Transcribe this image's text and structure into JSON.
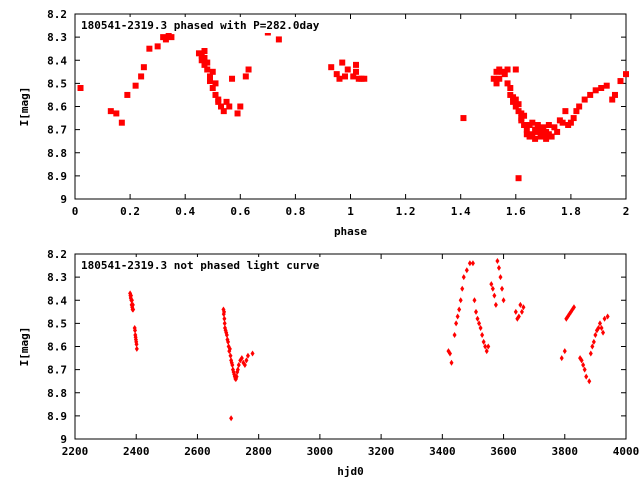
{
  "chart_data": [
    {
      "type": "scatter",
      "title": "180541-2319.3 phased with P=282.0day",
      "xlabel": "phase",
      "ylabel": "I[mag]",
      "xlim": [
        0,
        2
      ],
      "ylim": [
        9,
        8.2
      ],
      "y_inverted": true,
      "xticks": [
        "0",
        "0.2",
        "0.4",
        "0.6",
        "0.8",
        "1",
        "1.2",
        "1.4",
        "1.6",
        "1.8",
        "2"
      ],
      "yticks": [
        "8.2",
        "8.3",
        "8.4",
        "8.5",
        "8.6",
        "8.7",
        "8.8",
        "8.9",
        "9"
      ],
      "marker": "filled-square",
      "color": "#ff0000",
      "series": [
        {
          "x": [
            0.02,
            0.13,
            0.15,
            0.17,
            0.19,
            0.22,
            0.24,
            0.25,
            0.27,
            0.3,
            0.32,
            0.33,
            0.34,
            0.35,
            0.41,
            0.42,
            0.45,
            0.46,
            0.46,
            0.47,
            0.47,
            0.47,
            0.48,
            0.48,
            0.49,
            0.49,
            0.5,
            0.5,
            0.51,
            0.51,
            0.52,
            0.52,
            0.53,
            0.54,
            0.55,
            0.56,
            0.57,
            0.59,
            0.6,
            0.62,
            0.63,
            0.69,
            0.69,
            0.7,
            0.74,
            0.93,
            0.95,
            0.96,
            0.97,
            0.98,
            0.99,
            1.01,
            1.02,
            1.02,
            1.03,
            1.04,
            1.05,
            1.41,
            1.52,
            1.53,
            1.53,
            1.54,
            1.54,
            1.55,
            1.56,
            1.57,
            1.57,
            1.58,
            1.58,
            1.59,
            1.59,
            1.6,
            1.6,
            1.6,
            1.61,
            1.61,
            1.61,
            1.62,
            1.62,
            1.62,
            1.63,
            1.63,
            1.64,
            1.64,
            1.65,
            1.65,
            1.66,
            1.66,
            1.67,
            1.67,
            1.68,
            1.68,
            1.69,
            1.69,
            1.7,
            1.7,
            1.71,
            1.71,
            1.72,
            1.72,
            1.73,
            1.74,
            1.75,
            1.76,
            1.77,
            1.78,
            1.79,
            1.8,
            1.81,
            1.82,
            1.83,
            1.85,
            1.87,
            1.89,
            1.91,
            1.93,
            1.95,
            1.96,
            1.98,
            2.0
          ],
          "y": [
            8.52,
            8.62,
            8.63,
            8.67,
            8.55,
            8.51,
            8.47,
            8.43,
            8.35,
            8.34,
            8.3,
            8.31,
            8.29,
            8.3,
            8.24,
            8.25,
            8.37,
            8.38,
            8.4,
            8.36,
            8.42,
            8.39,
            8.44,
            8.41,
            8.47,
            8.49,
            8.45,
            8.52,
            8.5,
            8.55,
            8.57,
            8.58,
            8.6,
            8.62,
            8.58,
            8.6,
            8.48,
            8.63,
            8.6,
            8.47,
            8.44,
            8.24,
            8.25,
            8.28,
            8.31,
            8.43,
            8.46,
            8.48,
            8.41,
            8.47,
            8.44,
            8.47,
            8.42,
            8.45,
            8.48,
            8.48,
            8.48,
            8.65,
            8.48,
            8.45,
            8.5,
            8.44,
            8.48,
            8.45,
            8.46,
            8.44,
            8.5,
            8.52,
            8.55,
            8.56,
            8.58,
            8.6,
            8.57,
            8.44,
            8.62,
            8.59,
            8.91,
            8.63,
            8.65,
            8.66,
            8.64,
            8.68,
            8.7,
            8.72,
            8.73,
            8.68,
            8.72,
            8.67,
            8.7,
            8.74,
            8.71,
            8.68,
            8.73,
            8.7,
            8.72,
            8.69,
            8.71,
            8.74,
            8.68,
            8.72,
            8.73,
            8.69,
            8.71,
            8.66,
            8.67,
            8.62,
            8.68,
            8.67,
            8.65,
            8.62,
            8.6,
            8.57,
            8.55,
            8.53,
            8.52,
            8.51,
            8.57,
            8.55,
            8.49,
            8.46
          ]
        }
      ]
    },
    {
      "type": "scatter",
      "title": "180541-2319.3 not phased light curve",
      "xlabel": "hjd0",
      "ylabel": "I[mag]",
      "xlim": [
        2200,
        4000
      ],
      "ylim": [
        9,
        8.2
      ],
      "y_inverted": true,
      "xticks": [
        "2200",
        "2400",
        "2600",
        "2800",
        "3000",
        "3200",
        "3400",
        "3600",
        "3800",
        "4000"
      ],
      "yticks": [
        "8.2",
        "8.3",
        "8.4",
        "8.5",
        "8.6",
        "8.7",
        "8.8",
        "8.9",
        "9"
      ],
      "marker": "small-diamond",
      "color": "#ff0000",
      "series": [
        {
          "x": [
            2380,
            2381,
            2382,
            2383,
            2384,
            2385,
            2386,
            2387,
            2388,
            2389,
            2390,
            2395,
            2396,
            2397,
            2398,
            2399,
            2400,
            2401,
            2402,
            2685,
            2686,
            2687,
            2688,
            2689,
            2690,
            2692,
            2694,
            2696,
            2698,
            2700,
            2702,
            2704,
            2706,
            2708,
            2710,
            2712,
            2714,
            2716,
            2718,
            2720,
            2722,
            2724,
            2726,
            2728,
            2730,
            2732,
            2735,
            2740,
            2745,
            2750,
            2755,
            2760,
            2765,
            2780,
            2710,
            3420,
            3425,
            3430,
            3440,
            3445,
            3450,
            3455,
            3460,
            3465,
            3470,
            3480,
            3490,
            3500,
            3505,
            3510,
            3515,
            3520,
            3525,
            3530,
            3535,
            3540,
            3545,
            3550,
            3560,
            3565,
            3570,
            3575,
            3580,
            3585,
            3590,
            3595,
            3600,
            3640,
            3645,
            3650,
            3655,
            3660,
            3665,
            3790,
            3800,
            3805,
            3810,
            3815,
            3820,
            3825,
            3830,
            3850,
            3855,
            3860,
            3865,
            3870,
            3880,
            3885,
            3890,
            3895,
            3900,
            3905,
            3910,
            3915,
            3920,
            3925,
            3930,
            3940
          ],
          "y": [
            8.37,
            8.38,
            8.39,
            8.38,
            8.4,
            8.42,
            8.4,
            8.43,
            8.44,
            8.42,
            8.44,
            8.52,
            8.53,
            8.55,
            8.56,
            8.57,
            8.58,
            8.59,
            8.61,
            8.44,
            8.46,
            8.45,
            8.48,
            8.5,
            8.52,
            8.53,
            8.54,
            8.55,
            8.57,
            8.58,
            8.6,
            8.62,
            8.61,
            8.64,
            8.66,
            8.67,
            8.68,
            8.7,
            8.71,
            8.72,
            8.73,
            8.74,
            8.74,
            8.73,
            8.71,
            8.7,
            8.68,
            8.66,
            8.65,
            8.67,
            8.68,
            8.66,
            8.64,
            8.63,
            8.91,
            8.62,
            8.63,
            8.67,
            8.55,
            8.5,
            8.47,
            8.44,
            8.4,
            8.35,
            8.3,
            8.27,
            8.24,
            8.24,
            8.4,
            8.45,
            8.48,
            8.5,
            8.52,
            8.55,
            8.58,
            8.6,
            8.62,
            8.6,
            8.33,
            8.35,
            8.38,
            8.42,
            8.23,
            8.26,
            8.3,
            8.35,
            8.4,
            8.45,
            8.48,
            8.47,
            8.42,
            8.45,
            8.43,
            8.65,
            8.62,
            8.48,
            8.47,
            8.46,
            8.45,
            8.44,
            8.43,
            8.65,
            8.66,
            8.68,
            8.7,
            8.73,
            8.75,
            8.63,
            8.6,
            8.58,
            8.55,
            8.53,
            8.52,
            8.5,
            8.52,
            8.54,
            8.48,
            8.47
          ]
        }
      ]
    }
  ]
}
